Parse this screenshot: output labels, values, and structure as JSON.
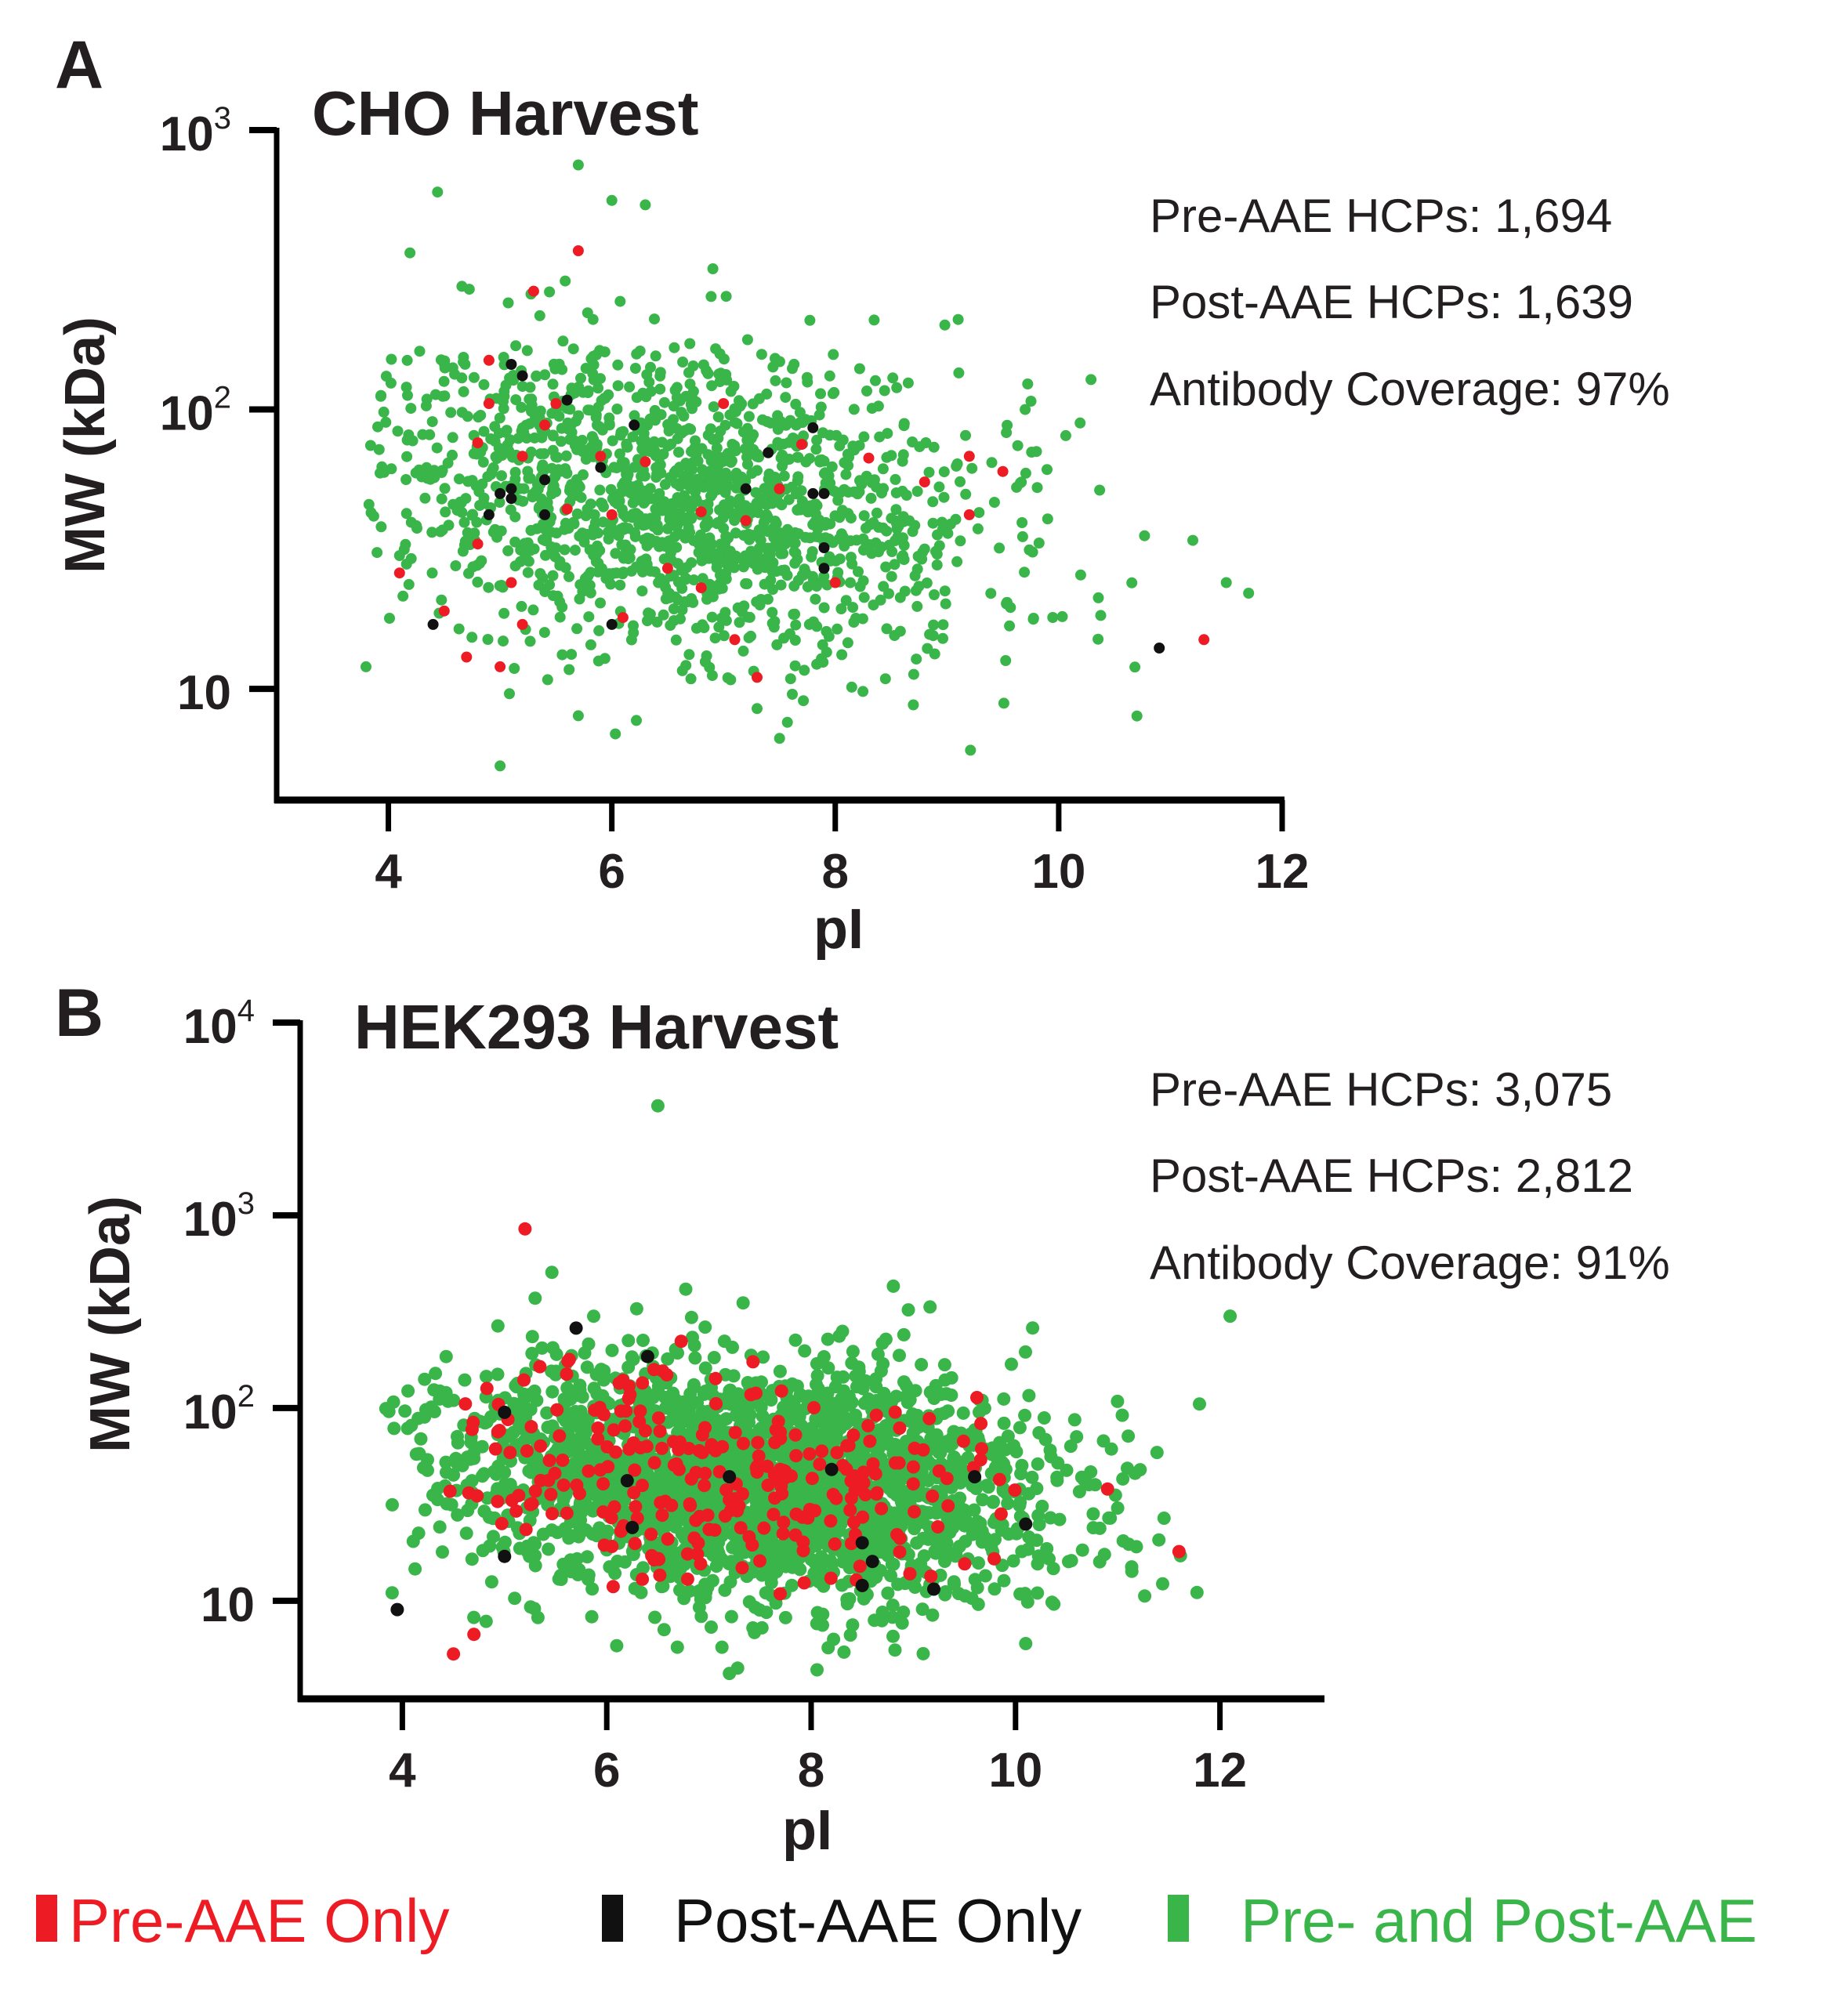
{
  "colors": {
    "pre_only": "#ed1c24",
    "post_only": "#111111",
    "both": "#39b54a",
    "axis": "#000000",
    "text": "#231f20"
  },
  "legend": [
    {
      "key": "pre_only",
      "label": "Pre-AAE Only"
    },
    {
      "key": "post_only",
      "label": "Post-AAE Only"
    },
    {
      "key": "both",
      "label": "Pre- and Post-AAE"
    }
  ],
  "chart_data": [
    {
      "type": "scatter",
      "panel": "A",
      "title": "CHO Harvest",
      "xlabel": "pI",
      "ylabel": "MW (kDa)",
      "xscale": "linear",
      "yscale": "log",
      "xlim": [
        3,
        12
      ],
      "ylim": [
        4,
        1000
      ],
      "xticks": [
        4,
        6,
        8,
        10,
        12
      ],
      "yticks": [
        {
          "value": 10,
          "base": "10",
          "exp": ""
        },
        {
          "value": 100,
          "base": "10",
          "exp": "2"
        },
        {
          "value": 1000,
          "base": "10",
          "exp": "3"
        }
      ],
      "grid": false,
      "stats": [
        "Pre-AAE HCPs: 1,694",
        "Post-AAE HCPs: 1,639",
        "Antibody Coverage: 97%"
      ],
      "series": [
        {
          "name": "Pre- and Post-AAE",
          "key": "both",
          "cluster": {
            "count": 1560,
            "center_pI": 6.6,
            "center_logMW": 1.68,
            "sd_pI": 1.35,
            "sd_logMW": 0.27,
            "pI_range": [
              3.8,
              11.7
            ],
            "logMW_range": [
              0.7,
              2.85
            ],
            "seed": 11
          },
          "points": [
            [
              3.8,
              12
            ],
            [
              4.1,
              30
            ],
            [
              5.0,
              5.3
            ],
            [
              5.7,
              750
            ],
            [
              6.0,
              560
            ],
            [
              6.3,
              540
            ],
            [
              10.7,
              8
            ],
            [
              11.2,
              34
            ],
            [
              11.5,
              24
            ],
            [
              11.7,
              22
            ],
            [
              7.3,
              8.5
            ],
            [
              9.1,
              210
            ],
            [
              9.7,
              100
            ]
          ]
        },
        {
          "name": "Pre-AAE Only",
          "key": "pre_only",
          "points": [
            [
              4.1,
              26
            ],
            [
              4.5,
              19
            ],
            [
              4.7,
              13
            ],
            [
              4.8,
              33
            ],
            [
              4.9,
              150
            ],
            [
              4.9,
              105
            ],
            [
              4.8,
              76
            ],
            [
              5.0,
              12
            ],
            [
              5.1,
              24
            ],
            [
              5.2,
              17
            ],
            [
              5.3,
              265
            ],
            [
              5.2,
              68
            ],
            [
              5.4,
              88
            ],
            [
              5.5,
              105
            ],
            [
              5.7,
              370
            ],
            [
              5.6,
              44
            ],
            [
              5.9,
              68
            ],
            [
              6.0,
              42
            ],
            [
              6.1,
              18
            ],
            [
              6.3,
              65
            ],
            [
              6.5,
              27
            ],
            [
              6.8,
              23
            ],
            [
              6.8,
              43
            ],
            [
              7.0,
              105
            ],
            [
              7.1,
              15
            ],
            [
              7.2,
              40
            ],
            [
              7.3,
              11
            ],
            [
              7.5,
              52
            ],
            [
              7.7,
              75
            ],
            [
              8.0,
              24
            ],
            [
              8.3,
              67
            ],
            [
              8.8,
              55
            ],
            [
              9.2,
              68
            ],
            [
              9.2,
              42
            ],
            [
              9.5,
              60
            ],
            [
              11.3,
              15
            ]
          ]
        },
        {
          "name": "Post-AAE Only",
          "key": "post_only",
          "points": [
            [
              4.4,
              17
            ],
            [
              4.9,
              42
            ],
            [
              5.0,
              50
            ],
            [
              5.1,
              52
            ],
            [
              5.1,
              48
            ],
            [
              5.1,
              145
            ],
            [
              5.2,
              132
            ],
            [
              5.4,
              42
            ],
            [
              5.4,
              56
            ],
            [
              5.6,
              108
            ],
            [
              5.9,
              62
            ],
            [
              6.0,
              17
            ],
            [
              6.2,
              88
            ],
            [
              7.2,
              52
            ],
            [
              7.4,
              70
            ],
            [
              7.8,
              50
            ],
            [
              7.9,
              32
            ],
            [
              7.9,
              50
            ],
            [
              7.9,
              27
            ],
            [
              7.8,
              86
            ],
            [
              10.9,
              14
            ]
          ]
        }
      ]
    },
    {
      "type": "scatter",
      "panel": "B",
      "title": "HEK293 Harvest",
      "xlabel": "pI",
      "ylabel": "MW (kDa)",
      "xscale": "linear",
      "yscale": "log",
      "xlim": [
        3,
        13
      ],
      "ylim": [
        3.1,
        10000
      ],
      "xticks": [
        4,
        6,
        8,
        10,
        12
      ],
      "yticks": [
        {
          "value": 10,
          "base": "10",
          "exp": ""
        },
        {
          "value": 100,
          "base": "10",
          "exp": "2"
        },
        {
          "value": 1000,
          "base": "10",
          "exp": "3"
        },
        {
          "value": 10000,
          "base": "10",
          "exp": "4"
        }
      ],
      "grid": false,
      "stats": [
        "Pre-AAE HCPs: 3,075",
        "Post-AAE HCPs: 2,812",
        "Antibody Coverage: 91%"
      ],
      "series": [
        {
          "name": "Pre- and Post-AAE",
          "key": "both",
          "cluster": {
            "count": 2400,
            "center_pI": 7.4,
            "center_logMW": 1.62,
            "sd_pI": 1.45,
            "sd_logMW": 0.3,
            "pI_range": [
              3.8,
              11.9
            ],
            "logMW_range": [
              0.62,
              2.9
            ],
            "seed": 23
          },
          "points": [
            [
              6.5,
              3700
            ],
            [
              12.1,
              300
            ],
            [
              11.8,
              105
            ],
            [
              7.2,
              4.2
            ],
            [
              10.1,
              6
            ],
            [
              3.9,
              11
            ]
          ]
        },
        {
          "name": "Pre-AAE Only",
          "key": "pre_only",
          "cluster": {
            "count": 270,
            "center_pI": 7.0,
            "center_logMW": 1.68,
            "sd_pI": 1.25,
            "sd_logMW": 0.27,
            "pI_range": [
              4.4,
              11.0
            ],
            "logMW_range": [
              0.85,
              2.75
            ],
            "seed": 37
          },
          "points": [
            [
              5.2,
              850
            ],
            [
              4.5,
              5.3
            ],
            [
              4.7,
              6.7
            ],
            [
              11.6,
              18
            ],
            [
              10.9,
              38
            ]
          ]
        },
        {
          "name": "Post-AAE Only",
          "key": "post_only",
          "points": [
            [
              3.95,
              9
            ],
            [
              5.0,
              95
            ],
            [
              5.0,
              17
            ],
            [
              5.7,
              260
            ],
            [
              6.2,
              42
            ],
            [
              6.25,
              24
            ],
            [
              6.4,
              185
            ],
            [
              7.2,
              44
            ],
            [
              8.2,
              48
            ],
            [
              8.5,
              20
            ],
            [
              8.6,
              16
            ],
            [
              8.5,
              12
            ],
            [
              9.2,
              11.5
            ],
            [
              9.6,
              44
            ],
            [
              10.1,
              25
            ]
          ]
        }
      ]
    }
  ]
}
